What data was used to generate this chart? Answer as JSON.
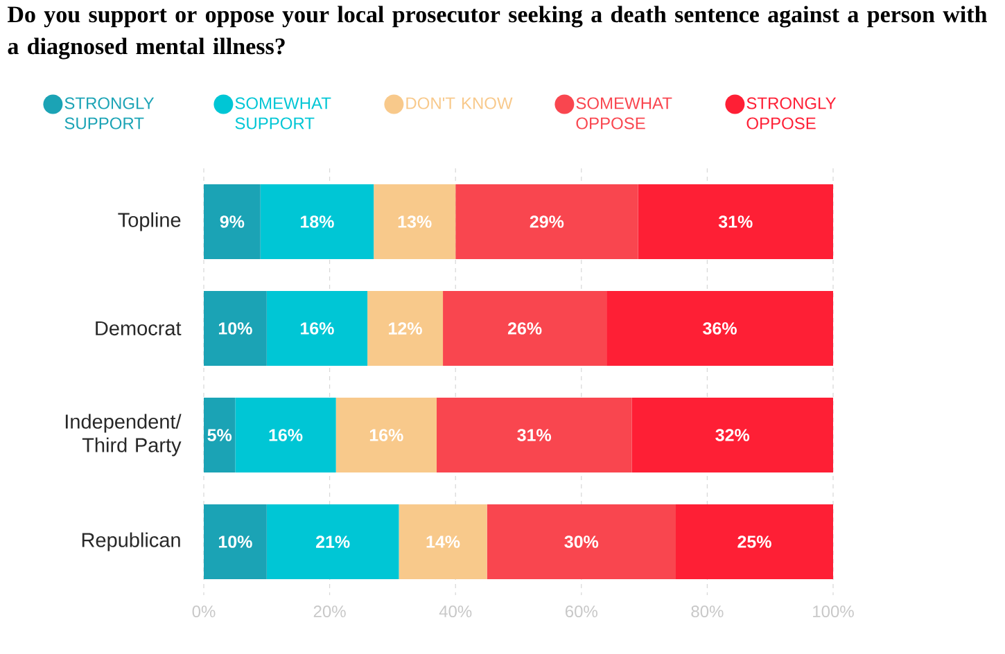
{
  "chart_data": {
    "type": "bar",
    "orientation": "horizontal",
    "stacked": true,
    "title": "Do you support or oppose your local prosecutor seeking a death sentence against a person with a diagnosed mental illness?",
    "categories": [
      "Topline",
      "Democrat",
      "Independent/ Third Party",
      "Republican"
    ],
    "series": [
      {
        "name": "STRONGLY SUPPORT",
        "color": "#1ba3b5",
        "values": [
          9,
          10,
          5,
          10
        ],
        "value_labels": [
          "9%",
          "10%",
          "5%",
          "10%"
        ]
      },
      {
        "name": "SOMEWHAT SUPPORT",
        "color": "#00c6d5",
        "values": [
          18,
          16,
          16,
          21
        ],
        "value_labels": [
          "18%",
          "16%",
          "16%",
          "21%"
        ]
      },
      {
        "name": "DON'T KNOW",
        "color": "#f8c98b",
        "values": [
          13,
          12,
          16,
          14
        ],
        "value_labels": [
          "13%",
          "12%",
          "16%",
          "14%"
        ]
      },
      {
        "name": "SOMEWHAT OPPOSE",
        "color": "#f9464f",
        "values": [
          29,
          26,
          31,
          30
        ],
        "value_labels": [
          "29%",
          "26%",
          "31%",
          "30%"
        ]
      },
      {
        "name": "STRONGLY OPPOSE",
        "color": "#fe1f35",
        "values": [
          31,
          36,
          32,
          25
        ],
        "value_labels": [
          "31%",
          "36%",
          "32%",
          "25%"
        ]
      }
    ],
    "xlim": [
      0,
      100
    ],
    "xticks": [
      {
        "value": 0,
        "label": "0%"
      },
      {
        "value": 20,
        "label": "20%"
      },
      {
        "value": 40,
        "label": "40%"
      },
      {
        "value": 60,
        "label": "60%"
      },
      {
        "value": 80,
        "label": "80%"
      },
      {
        "value": 100,
        "label": "100%"
      }
    ],
    "grid": "x",
    "legend": "top"
  }
}
